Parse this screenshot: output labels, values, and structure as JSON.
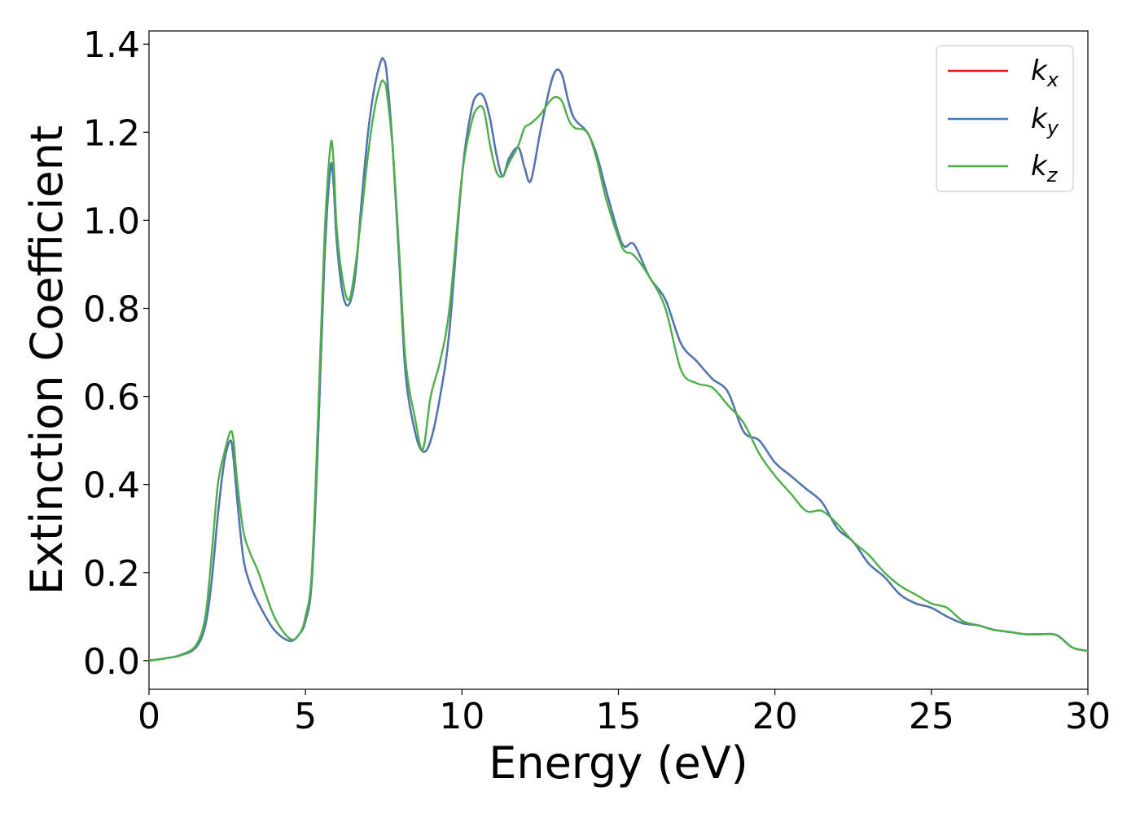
{
  "chart_data": {
    "type": "line",
    "title": "",
    "xlabel": "Energy (eV)",
    "ylabel": "Extinction Coefficient",
    "xlim": [
      0,
      30
    ],
    "ylim": [
      -0.065,
      1.43
    ],
    "xticks": [
      0,
      5,
      10,
      15,
      20,
      25,
      30
    ],
    "xtick_labels": [
      "0",
      "5",
      "10",
      "15",
      "20",
      "25",
      "30"
    ],
    "yticks": [
      0.0,
      0.2,
      0.4,
      0.6,
      0.8,
      1.0,
      1.2,
      1.4
    ],
    "ytick_labels": [
      "0.0",
      "0.2",
      "0.4",
      "0.6",
      "0.8",
      "1.0",
      "1.2",
      "1.4"
    ],
    "grid": false,
    "legend_position": "top-right",
    "series": [
      {
        "name": "k_x",
        "legend_base": "k",
        "legend_sub": "x",
        "color": "#e41a1c",
        "x": [
          0,
          0.5,
          1.0,
          1.5,
          1.8,
          2.0,
          2.2,
          2.4,
          2.6,
          2.7,
          2.8,
          3.0,
          3.2,
          3.5,
          4.0,
          4.5,
          4.8,
          5.0,
          5.2,
          5.4,
          5.6,
          5.8,
          5.9,
          6.0,
          6.2,
          6.4,
          6.6,
          6.8,
          7.0,
          7.2,
          7.4,
          7.5,
          7.6,
          7.8,
          8.0,
          8.2,
          8.5,
          8.75,
          9.0,
          9.3,
          9.6,
          10.0,
          10.3,
          10.5,
          10.7,
          10.9,
          11.1,
          11.3,
          11.5,
          11.8,
          12.0,
          12.2,
          12.5,
          12.8,
          13.0,
          13.2,
          13.4,
          13.6,
          14.0,
          14.3,
          14.6,
          15.0,
          15.2,
          15.5,
          16.0,
          16.5,
          17.0,
          17.5,
          18.0,
          18.5,
          19.0,
          19.5,
          20.0,
          20.5,
          21.0,
          21.5,
          22.0,
          22.5,
          23.0,
          23.5,
          24.0,
          24.5,
          25.0,
          25.5,
          26.0,
          26.5,
          27.0,
          27.5,
          28.0,
          28.5,
          29.0,
          29.5,
          30.0
        ],
        "y": [
          0.0,
          0.005,
          0.012,
          0.03,
          0.08,
          0.18,
          0.33,
          0.45,
          0.5,
          0.46,
          0.38,
          0.24,
          0.18,
          0.13,
          0.07,
          0.045,
          0.06,
          0.09,
          0.18,
          0.5,
          0.9,
          1.12,
          1.08,
          0.95,
          0.83,
          0.81,
          0.88,
          1.05,
          1.2,
          1.3,
          1.36,
          1.365,
          1.33,
          1.15,
          0.9,
          0.65,
          0.52,
          0.475,
          0.5,
          0.6,
          0.75,
          1.1,
          1.25,
          1.285,
          1.28,
          1.23,
          1.15,
          1.1,
          1.14,
          1.165,
          1.12,
          1.09,
          1.2,
          1.3,
          1.34,
          1.33,
          1.27,
          1.23,
          1.2,
          1.15,
          1.07,
          0.97,
          0.94,
          0.945,
          0.87,
          0.82,
          0.72,
          0.68,
          0.64,
          0.61,
          0.52,
          0.5,
          0.45,
          0.42,
          0.39,
          0.36,
          0.3,
          0.27,
          0.22,
          0.19,
          0.15,
          0.13,
          0.12,
          0.1,
          0.085,
          0.08,
          0.07,
          0.065,
          0.06,
          0.06,
          0.058,
          0.03,
          0.022
        ]
      },
      {
        "name": "k_y",
        "legend_base": "k",
        "legend_sub": "y",
        "color": "#4a7ab5",
        "x": [
          0,
          0.5,
          1.0,
          1.5,
          1.8,
          2.0,
          2.2,
          2.4,
          2.6,
          2.7,
          2.8,
          3.0,
          3.2,
          3.5,
          4.0,
          4.5,
          4.8,
          5.0,
          5.2,
          5.4,
          5.6,
          5.8,
          5.9,
          6.0,
          6.2,
          6.4,
          6.6,
          6.8,
          7.0,
          7.2,
          7.4,
          7.5,
          7.6,
          7.8,
          8.0,
          8.2,
          8.5,
          8.75,
          9.0,
          9.3,
          9.6,
          10.0,
          10.3,
          10.5,
          10.7,
          10.9,
          11.1,
          11.3,
          11.5,
          11.8,
          12.0,
          12.2,
          12.5,
          12.8,
          13.0,
          13.2,
          13.4,
          13.6,
          14.0,
          14.3,
          14.6,
          15.0,
          15.2,
          15.5,
          16.0,
          16.5,
          17.0,
          17.5,
          18.0,
          18.5,
          19.0,
          19.5,
          20.0,
          20.5,
          21.0,
          21.5,
          22.0,
          22.5,
          23.0,
          23.5,
          24.0,
          24.5,
          25.0,
          25.5,
          26.0,
          26.5,
          27.0,
          27.5,
          28.0,
          28.5,
          29.0,
          29.5,
          30.0
        ],
        "y": [
          0.0,
          0.005,
          0.012,
          0.03,
          0.08,
          0.18,
          0.33,
          0.45,
          0.5,
          0.46,
          0.38,
          0.24,
          0.18,
          0.13,
          0.07,
          0.045,
          0.06,
          0.09,
          0.18,
          0.5,
          0.9,
          1.12,
          1.08,
          0.95,
          0.83,
          0.81,
          0.88,
          1.05,
          1.2,
          1.3,
          1.36,
          1.365,
          1.33,
          1.15,
          0.9,
          0.65,
          0.52,
          0.475,
          0.5,
          0.6,
          0.75,
          1.1,
          1.25,
          1.285,
          1.28,
          1.23,
          1.15,
          1.1,
          1.14,
          1.165,
          1.12,
          1.09,
          1.2,
          1.3,
          1.34,
          1.33,
          1.27,
          1.23,
          1.2,
          1.15,
          1.07,
          0.97,
          0.94,
          0.945,
          0.87,
          0.82,
          0.72,
          0.68,
          0.64,
          0.61,
          0.52,
          0.5,
          0.45,
          0.42,
          0.39,
          0.36,
          0.3,
          0.27,
          0.22,
          0.19,
          0.15,
          0.13,
          0.12,
          0.1,
          0.085,
          0.08,
          0.07,
          0.065,
          0.06,
          0.06,
          0.058,
          0.03,
          0.022
        ]
      },
      {
        "name": "k_z",
        "legend_base": "k",
        "legend_sub": "z",
        "color": "#4daf4a",
        "x": [
          0,
          0.5,
          1.0,
          1.5,
          1.8,
          2.0,
          2.2,
          2.4,
          2.6,
          2.7,
          2.8,
          3.0,
          3.2,
          3.5,
          4.0,
          4.5,
          4.8,
          5.0,
          5.2,
          5.4,
          5.6,
          5.8,
          5.9,
          6.0,
          6.2,
          6.4,
          6.6,
          6.8,
          7.0,
          7.2,
          7.4,
          7.5,
          7.6,
          7.8,
          8.0,
          8.2,
          8.5,
          8.75,
          9.0,
          9.3,
          9.6,
          10.0,
          10.3,
          10.5,
          10.7,
          10.9,
          11.1,
          11.3,
          11.5,
          11.8,
          12.0,
          12.2,
          12.5,
          12.8,
          13.0,
          13.2,
          13.4,
          13.6,
          14.0,
          14.3,
          14.6,
          15.0,
          15.2,
          15.5,
          16.0,
          16.5,
          17.0,
          17.5,
          18.0,
          18.5,
          19.0,
          19.5,
          20.0,
          20.5,
          21.0,
          21.5,
          22.0,
          22.5,
          23.0,
          23.5,
          24.0,
          24.5,
          25.0,
          25.5,
          26.0,
          26.5,
          27.0,
          27.5,
          28.0,
          28.5,
          29.0,
          29.5,
          30.0
        ],
        "y": [
          0.0,
          0.005,
          0.013,
          0.035,
          0.1,
          0.24,
          0.4,
          0.47,
          0.52,
          0.5,
          0.42,
          0.3,
          0.25,
          0.2,
          0.1,
          0.05,
          0.06,
          0.1,
          0.2,
          0.55,
          0.95,
          1.17,
          1.13,
          0.98,
          0.86,
          0.82,
          0.9,
          1.02,
          1.15,
          1.25,
          1.31,
          1.315,
          1.29,
          1.15,
          0.92,
          0.68,
          0.55,
          0.48,
          0.6,
          0.68,
          0.8,
          1.1,
          1.22,
          1.255,
          1.25,
          1.17,
          1.11,
          1.1,
          1.13,
          1.17,
          1.21,
          1.22,
          1.24,
          1.27,
          1.28,
          1.27,
          1.23,
          1.21,
          1.2,
          1.14,
          1.05,
          0.96,
          0.93,
          0.92,
          0.87,
          0.8,
          0.66,
          0.63,
          0.62,
          0.58,
          0.54,
          0.47,
          0.42,
          0.38,
          0.34,
          0.34,
          0.31,
          0.27,
          0.24,
          0.2,
          0.17,
          0.15,
          0.13,
          0.12,
          0.09,
          0.08,
          0.07,
          0.065,
          0.06,
          0.06,
          0.058,
          0.03,
          0.022
        ]
      }
    ]
  }
}
